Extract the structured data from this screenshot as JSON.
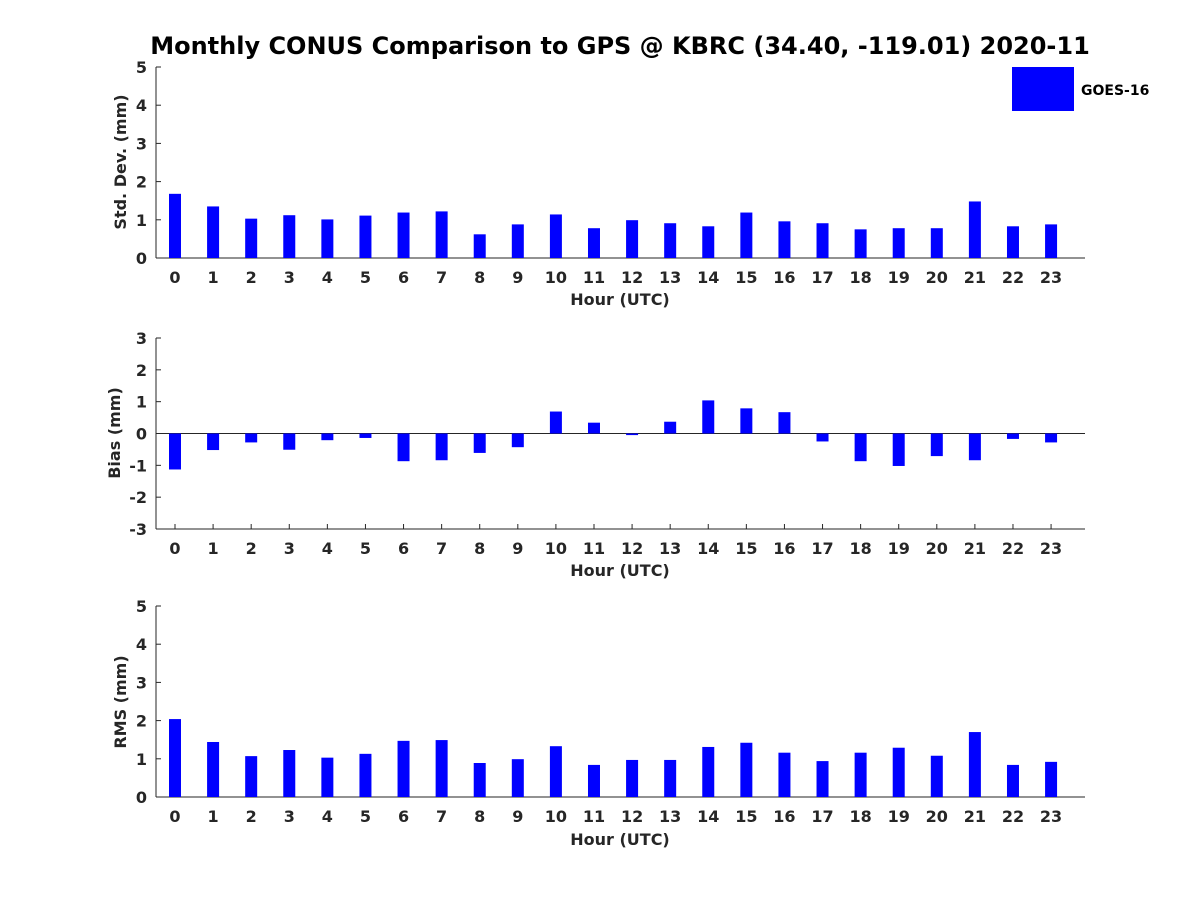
{
  "chart_data": {
    "type": "bar",
    "title": "Monthly CONUS Comparison to GPS @ KBRC (34.40, -119.01) 2020-11",
    "legend": {
      "label": "GOES-16",
      "placement": "top-right",
      "color": "#0000ff"
    },
    "categories": [
      "0",
      "1",
      "2",
      "3",
      "4",
      "5",
      "6",
      "7",
      "8",
      "9",
      "10",
      "11",
      "12",
      "13",
      "14",
      "15",
      "16",
      "17",
      "18",
      "19",
      "20",
      "21",
      "22",
      "23"
    ],
    "panels": [
      {
        "id": "std",
        "xlabel": "Hour (UTC)",
        "ylabel": "Std. Dev. (mm)",
        "ylim": [
          0,
          5
        ],
        "yticks": [
          "0",
          "1",
          "2",
          "3",
          "4",
          "5"
        ],
        "values": [
          1.68,
          1.35,
          1.03,
          1.12,
          1.01,
          1.11,
          1.19,
          1.22,
          0.62,
          0.88,
          1.14,
          0.78,
          0.99,
          0.91,
          0.83,
          1.19,
          0.96,
          0.91,
          0.75,
          0.78,
          0.78,
          1.48,
          0.83,
          0.88
        ]
      },
      {
        "id": "bias",
        "xlabel": "Hour (UTC)",
        "ylabel": "Bias (mm)",
        "ylim": [
          -3,
          3
        ],
        "yticks": [
          "-3",
          "-2",
          "-1",
          "0",
          "1",
          "2",
          "3"
        ],
        "values": [
          -1.13,
          -0.52,
          -0.28,
          -0.51,
          -0.21,
          -0.14,
          -0.87,
          -0.84,
          -0.61,
          -0.43,
          0.69,
          0.34,
          -0.05,
          0.37,
          1.04,
          0.79,
          0.67,
          -0.25,
          -0.87,
          -1.02,
          -0.71,
          -0.84,
          -0.17,
          -0.28
        ]
      },
      {
        "id": "rms",
        "xlabel": "Hour (UTC)",
        "ylabel": "RMS (mm)",
        "ylim": [
          0,
          5
        ],
        "yticks": [
          "0",
          "1",
          "2",
          "3",
          "4",
          "5"
        ],
        "values": [
          2.04,
          1.44,
          1.07,
          1.23,
          1.03,
          1.13,
          1.47,
          1.49,
          0.89,
          0.99,
          1.33,
          0.84,
          0.97,
          0.97,
          1.31,
          1.42,
          1.16,
          0.94,
          1.16,
          1.29,
          1.08,
          1.7,
          0.84,
          0.92
        ]
      }
    ]
  }
}
